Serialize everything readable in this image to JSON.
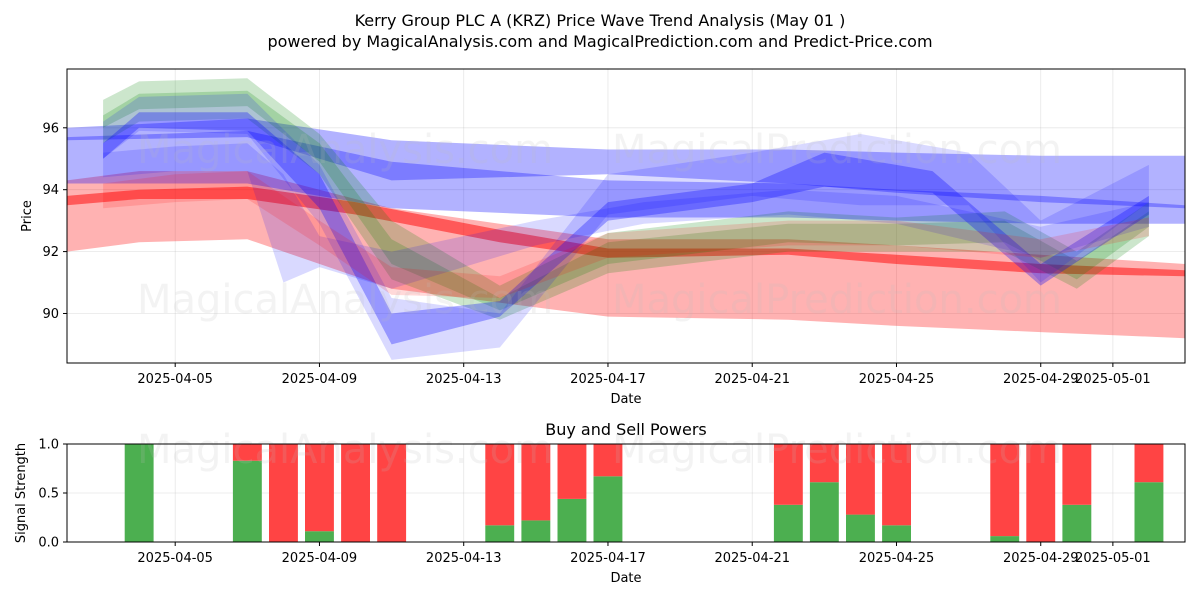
{
  "title": {
    "line1": "Kerry Group PLC A (KRZ) Price Wave Trend Analysis (May 01 )",
    "line2": "powered by MagicalAnalysis.com and MagicalPrediction.com and Predict-Price.com"
  },
  "watermarks": [
    "MagicalAnalysis.com",
    "MagicalPrediction.com"
  ],
  "colors": {
    "red": "#ff0000",
    "blue": "#0000ff",
    "green": "#008000",
    "bar_buy": "#4caf50",
    "bar_sell": "#ff4444"
  },
  "chart_data": [
    {
      "type": "area",
      "xlabel": "Date",
      "ylabel": "Price",
      "xlim": [
        "2025-04-02",
        "2025-05-03"
      ],
      "ylim": [
        88.4,
        97.9
      ],
      "yticks": [
        90,
        92,
        94,
        96
      ],
      "xticks": [
        "2025-04-05",
        "2025-04-09",
        "2025-04-13",
        "2025-04-17",
        "2025-04-21",
        "2025-04-25",
        "2025-04-29",
        "2025-05-01"
      ],
      "grid": true,
      "series": [
        {
          "color": "red",
          "opacity": 0.3,
          "x": [
            "2025-04-02",
            "2025-04-04",
            "2025-04-07",
            "2025-04-11",
            "2025-04-17",
            "2025-04-22",
            "2025-04-25",
            "2025-04-29",
            "2025-05-03"
          ],
          "upper": [
            94.3,
            94.6,
            94.6,
            93.4,
            92.4,
            92.4,
            92.2,
            91.9,
            91.6
          ],
          "lower": [
            92.0,
            92.3,
            92.4,
            90.8,
            89.9,
            89.8,
            89.6,
            89.4,
            89.2
          ]
        },
        {
          "color": "red",
          "opacity": 0.5,
          "x": [
            "2025-04-02",
            "2025-04-04",
            "2025-04-07",
            "2025-04-10",
            "2025-04-14",
            "2025-04-17",
            "2025-04-22",
            "2025-04-25",
            "2025-04-29",
            "2025-05-03"
          ],
          "upper": [
            93.8,
            94.0,
            94.1,
            93.6,
            92.7,
            92.1,
            92.1,
            91.9,
            91.6,
            91.4
          ],
          "lower": [
            93.5,
            93.7,
            93.7,
            93.2,
            92.3,
            91.8,
            91.9,
            91.6,
            91.3,
            91.2
          ]
        },
        {
          "color": "blue",
          "opacity": 0.3,
          "x": [
            "2025-04-02",
            "2025-04-07",
            "2025-04-11",
            "2025-04-17",
            "2025-04-22",
            "2025-04-25",
            "2025-04-29",
            "2025-05-03"
          ],
          "upper": [
            96.0,
            96.3,
            95.6,
            95.3,
            95.3,
            95.2,
            95.1,
            95.1
          ],
          "lower": [
            95.6,
            95.7,
            94.3,
            94.5,
            94.2,
            93.9,
            93.6,
            93.4
          ]
        },
        {
          "color": "blue",
          "opacity": 0.3,
          "x": [
            "2025-04-02",
            "2025-04-07",
            "2025-04-11",
            "2025-04-17",
            "2025-04-22",
            "2025-04-25",
            "2025-04-29",
            "2025-05-03"
          ],
          "upper": [
            95.7,
            95.9,
            94.9,
            94.3,
            94.2,
            94.0,
            93.8,
            93.5
          ],
          "lower": [
            94.2,
            94.2,
            93.4,
            93.1,
            93.1,
            93.0,
            92.9,
            92.9
          ]
        },
        {
          "color": "green",
          "opacity": 0.2,
          "x": [
            "2025-04-03",
            "2025-04-04",
            "2025-04-07",
            "2025-04-09",
            "2025-04-11",
            "2025-04-14",
            "2025-04-17",
            "2025-04-22",
            "2025-04-25",
            "2025-04-28",
            "2025-04-30",
            "2025-05-02"
          ],
          "upper": [
            96.9,
            97.5,
            97.6,
            95.8,
            93.0,
            90.9,
            92.6,
            93.3,
            93.1,
            93.3,
            92.0,
            93.6
          ],
          "lower": [
            96.0,
            96.6,
            96.7,
            94.9,
            91.6,
            90.1,
            91.6,
            92.3,
            92.2,
            92.3,
            91.1,
            92.8
          ]
        },
        {
          "color": "green",
          "opacity": 0.2,
          "x": [
            "2025-04-03",
            "2025-04-04",
            "2025-04-07",
            "2025-04-09",
            "2025-04-11",
            "2025-04-14",
            "2025-04-17",
            "2025-04-22",
            "2025-04-25",
            "2025-04-28",
            "2025-04-30",
            "2025-05-02"
          ],
          "upper": [
            96.4,
            97.1,
            97.2,
            95.5,
            92.4,
            90.5,
            92.3,
            92.9,
            92.9,
            93.0,
            91.7,
            93.3
          ],
          "lower": [
            95.5,
            96.2,
            96.3,
            94.5,
            91.1,
            89.8,
            91.3,
            92.0,
            92.0,
            92.0,
            90.8,
            92.5
          ]
        },
        {
          "color": "blue",
          "opacity": 0.15,
          "x": [
            "2025-04-03",
            "2025-04-04",
            "2025-04-07",
            "2025-04-09",
            "2025-04-11",
            "2025-04-14",
            "2025-04-17",
            "2025-04-21",
            "2025-04-24",
            "2025-04-27",
            "2025-04-29",
            "2025-05-02"
          ],
          "upper": [
            96.2,
            97.0,
            97.1,
            94.8,
            90.5,
            90.0,
            94.5,
            95.2,
            95.8,
            95.2,
            93.0,
            94.8
          ],
          "lower": [
            95.0,
            95.9,
            95.8,
            92.9,
            88.5,
            88.9,
            93.2,
            93.8,
            93.5,
            93.5,
            91.0,
            93.6
          ]
        },
        {
          "color": "blue",
          "opacity": 0.3,
          "x": [
            "2025-04-03",
            "2025-04-04",
            "2025-04-07",
            "2025-04-09",
            "2025-04-11",
            "2025-04-14",
            "2025-04-17",
            "2025-04-21",
            "2025-04-23",
            "2025-04-26",
            "2025-04-29",
            "2025-05-02"
          ],
          "upper": [
            95.5,
            96.5,
            96.5,
            94.5,
            90.0,
            90.4,
            93.6,
            94.2,
            95.2,
            94.6,
            91.6,
            93.8
          ],
          "lower": [
            95.0,
            96.0,
            95.9,
            93.4,
            89.0,
            89.9,
            93.0,
            93.6,
            94.1,
            93.9,
            90.9,
            93.2
          ]
        },
        {
          "color": "blue",
          "opacity": 0.15,
          "x": [
            "2025-04-03",
            "2025-04-05",
            "2025-04-07",
            "2025-04-08",
            "2025-04-09",
            "2025-04-11",
            "2025-04-15",
            "2025-04-18",
            "2025-04-22",
            "2025-04-25",
            "2025-04-29",
            "2025-05-02"
          ],
          "upper": [
            95.2,
            95.4,
            95.5,
            94.5,
            92.5,
            92.0,
            93.0,
            93.6,
            94.0,
            93.8,
            92.8,
            93.6
          ],
          "lower": [
            94.4,
            94.6,
            94.6,
            91.0,
            91.5,
            90.8,
            92.2,
            92.9,
            93.2,
            92.9,
            91.8,
            92.8
          ]
        },
        {
          "color": "red",
          "opacity": 0.15,
          "x": [
            "2025-04-03",
            "2025-04-05",
            "2025-04-07",
            "2025-04-09",
            "2025-04-11",
            "2025-04-14",
            "2025-04-17",
            "2025-04-22",
            "2025-04-25",
            "2025-04-29",
            "2025-05-02"
          ],
          "upper": [
            94.2,
            94.5,
            94.6,
            93.0,
            91.5,
            91.2,
            92.6,
            93.0,
            93.0,
            92.4,
            93.1
          ],
          "lower": [
            93.4,
            93.6,
            93.7,
            92.2,
            90.6,
            90.5,
            91.8,
            92.2,
            92.2,
            91.8,
            92.5
          ]
        }
      ]
    },
    {
      "type": "bar",
      "title": "Buy and Sell Powers",
      "xlabel": "Date",
      "ylabel": "Signal Strength",
      "xlim": [
        "2025-04-02",
        "2025-05-03"
      ],
      "ylim": [
        0,
        1.0
      ],
      "yticks": [
        "0.0",
        "0.5",
        "1.0"
      ],
      "xticks": [
        "2025-04-05",
        "2025-04-09",
        "2025-04-13",
        "2025-04-17",
        "2025-04-21",
        "2025-04-25",
        "2025-04-29",
        "2025-05-01"
      ],
      "grid": true,
      "x": [
        "2025-04-04",
        "2025-04-07",
        "2025-04-08",
        "2025-04-09",
        "2025-04-10",
        "2025-04-11",
        "2025-04-14",
        "2025-04-15",
        "2025-04-16",
        "2025-04-17",
        "2025-04-22",
        "2025-04-23",
        "2025-04-24",
        "2025-04-25",
        "2025-04-28",
        "2025-04-29",
        "2025-04-30",
        "2025-05-02"
      ],
      "buy": [
        1.0,
        0.83,
        0.0,
        0.11,
        0.0,
        0.0,
        0.17,
        0.22,
        0.44,
        0.67,
        0.38,
        0.61,
        0.28,
        0.17,
        0.06,
        0.0,
        0.38,
        0.61
      ],
      "sell": [
        0.0,
        0.17,
        1.0,
        0.89,
        1.0,
        1.0,
        0.83,
        0.78,
        0.56,
        0.33,
        0.62,
        0.39,
        0.72,
        0.83,
        0.94,
        1.0,
        0.62,
        0.39
      ]
    }
  ]
}
